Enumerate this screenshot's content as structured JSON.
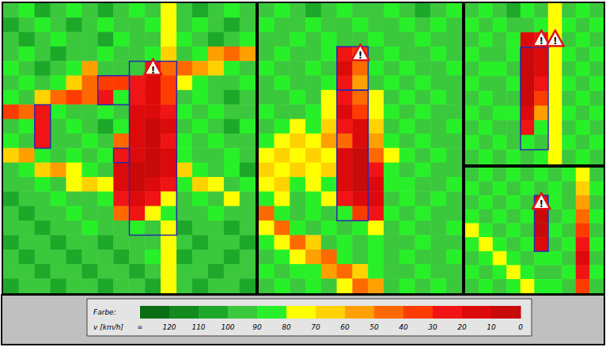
{
  "chart_data": [
    {
      "type": "heatmap",
      "cells": [
        [
          95,
          85,
          105,
          95,
          85,
          95,
          105,
          95,
          85,
          95,
          75,
          95,
          105,
          95,
          85,
          95
        ],
        [
          105,
          95,
          85,
          95,
          105,
          95,
          85,
          95,
          95,
          85,
          75,
          95,
          85,
          95,
          105,
          95
        ],
        [
          95,
          105,
          95,
          85,
          95,
          95,
          105,
          85,
          95,
          95,
          75,
          85,
          95,
          105,
          95,
          85
        ],
        [
          95,
          85,
          95,
          105,
          95,
          95,
          85,
          95,
          95,
          85,
          65,
          95,
          85,
          55,
          45,
          55
        ],
        [
          85,
          95,
          105,
          95,
          85,
          55,
          95,
          95,
          95,
          25,
          45,
          45,
          55,
          65,
          85,
          95
        ],
        [
          95,
          85,
          95,
          85,
          65,
          45,
          35,
          35,
          25,
          15,
          35,
          75,
          85,
          95,
          95,
          85
        ],
        [
          85,
          95,
          65,
          45,
          35,
          45,
          25,
          85,
          25,
          15,
          35,
          95,
          85,
          95,
          105,
          95
        ],
        [
          35,
          45,
          25,
          85,
          95,
          95,
          85,
          95,
          15,
          15,
          25,
          85,
          95,
          85,
          95,
          95
        ],
        [
          95,
          85,
          25,
          95,
          85,
          95,
          105,
          85,
          15,
          5,
          15,
          95,
          85,
          95,
          105,
          85
        ],
        [
          85,
          95,
          25,
          95,
          95,
          85,
          95,
          45,
          15,
          5,
          25,
          85,
          95,
          85,
          95,
          95
        ],
        [
          65,
          55,
          85,
          95,
          85,
          95,
          85,
          25,
          15,
          5,
          15,
          85,
          95,
          95,
          85,
          95
        ],
        [
          95,
          85,
          65,
          55,
          75,
          85,
          95,
          15,
          5,
          5,
          15,
          65,
          85,
          95,
          85,
          105
        ],
        [
          95,
          95,
          85,
          95,
          75,
          65,
          75,
          15,
          5,
          15,
          25,
          85,
          65,
          75,
          95,
          85
        ],
        [
          105,
          95,
          95,
          85,
          95,
          95,
          85,
          25,
          15,
          25,
          75,
          95,
          85,
          95,
          75,
          95
        ],
        [
          95,
          105,
          95,
          95,
          85,
          95,
          95,
          45,
          25,
          75,
          85,
          95,
          95,
          85,
          95,
          95
        ],
        [
          95,
          95,
          105,
          95,
          95,
          85,
          95,
          95,
          85,
          95,
          75,
          105,
          95,
          95,
          105,
          95
        ],
        [
          105,
          95,
          95,
          105,
          95,
          95,
          105,
          95,
          95,
          95,
          75,
          95,
          105,
          95,
          95,
          105
        ],
        [
          95,
          105,
          95,
          95,
          105,
          95,
          95,
          105,
          95,
          85,
          75,
          105,
          95,
          95,
          105,
          95
        ],
        [
          95,
          95,
          105,
          95,
          95,
          105,
          95,
          95,
          105,
          95,
          75,
          95,
          95,
          105,
          95,
          95
        ],
        [
          105,
          95,
          95,
          105,
          95,
          95,
          105,
          95,
          95,
          105,
          75,
          95,
          105,
          95,
          95,
          105
        ]
      ],
      "boxes": [
        [
          8,
          4,
          10,
          15
        ],
        [
          2,
          7,
          2,
          9
        ],
        [
          6,
          5,
          7,
          6
        ],
        [
          7,
          10,
          7,
          10
        ]
      ],
      "warnings": [
        [
          9,
          4
        ]
      ]
    },
    {
      "type": "heatmap",
      "cells": [
        [
          95,
          85,
          95,
          105,
          95,
          85,
          95,
          95,
          85,
          95,
          105,
          95,
          85
        ],
        [
          85,
          95,
          95,
          85,
          95,
          95,
          85,
          95,
          95,
          85,
          95,
          85,
          95
        ],
        [
          95,
          95,
          85,
          95,
          85,
          95,
          95,
          85,
          95,
          95,
          85,
          95,
          95
        ],
        [
          95,
          85,
          95,
          95,
          85,
          25,
          35,
          95,
          85,
          95,
          95,
          85,
          95
        ],
        [
          85,
          95,
          95,
          85,
          95,
          15,
          45,
          85,
          95,
          85,
          95,
          95,
          85
        ],
        [
          95,
          85,
          95,
          95,
          85,
          25,
          55,
          95,
          85,
          95,
          85,
          95,
          95
        ],
        [
          95,
          95,
          85,
          95,
          75,
          25,
          45,
          75,
          95,
          85,
          95,
          85,
          95
        ],
        [
          85,
          95,
          95,
          85,
          75,
          15,
          35,
          75,
          85,
          95,
          85,
          95,
          95
        ],
        [
          95,
          85,
          75,
          85,
          65,
          25,
          15,
          65,
          95,
          85,
          95,
          95,
          85
        ],
        [
          85,
          75,
          65,
          75,
          55,
          45,
          15,
          55,
          85,
          95,
          85,
          95,
          95
        ],
        [
          75,
          65,
          75,
          65,
          75,
          15,
          5,
          45,
          75,
          85,
          95,
          85,
          95
        ],
        [
          65,
          75,
          65,
          75,
          65,
          15,
          5,
          25,
          85,
          95,
          85,
          95,
          95
        ],
        [
          75,
          65,
          85,
          75,
          85,
          15,
          5,
          15,
          85,
          85,
          95,
          95,
          85
        ],
        [
          85,
          75,
          95,
          85,
          75,
          25,
          15,
          15,
          95,
          85,
          95,
          85,
          95
        ],
        [
          45,
          85,
          95,
          85,
          95,
          85,
          35,
          25,
          85,
          95,
          85,
          95,
          95
        ],
        [
          75,
          45,
          85,
          95,
          85,
          95,
          85,
          75,
          95,
          85,
          95,
          95,
          85
        ],
        [
          85,
          75,
          45,
          65,
          95,
          85,
          95,
          85,
          95,
          95,
          85,
          95,
          95
        ],
        [
          95,
          85,
          75,
          55,
          45,
          85,
          95,
          85,
          95,
          85,
          95,
          95,
          85
        ],
        [
          85,
          95,
          85,
          85,
          55,
          45,
          65,
          85,
          95,
          95,
          85,
          95,
          95
        ],
        [
          95,
          85,
          95,
          85,
          95,
          75,
          45,
          55,
          95,
          85,
          95,
          85,
          95
        ]
      ],
      "boxes": [
        [
          5,
          3,
          6,
          5
        ],
        [
          5,
          6,
          6,
          14
        ]
      ],
      "warnings": [
        [
          6,
          3
        ]
      ]
    },
    {
      "type": "heatmap",
      "cells": [
        [
          95,
          85,
          95,
          105,
          85,
          95,
          75,
          95,
          85,
          95
        ],
        [
          85,
          95,
          85,
          95,
          95,
          85,
          75,
          85,
          95,
          85
        ],
        [
          95,
          85,
          95,
          85,
          15,
          25,
          75,
          95,
          85,
          95
        ],
        [
          85,
          95,
          95,
          85,
          5,
          15,
          75,
          85,
          95,
          85
        ],
        [
          95,
          85,
          85,
          95,
          5,
          15,
          75,
          95,
          85,
          95
        ],
        [
          85,
          95,
          95,
          85,
          5,
          25,
          75,
          85,
          95,
          85
        ],
        [
          95,
          85,
          95,
          95,
          5,
          35,
          75,
          95,
          85,
          95
        ],
        [
          85,
          95,
          85,
          85,
          15,
          55,
          75,
          85,
          95,
          85
        ],
        [
          95,
          85,
          95,
          95,
          25,
          85,
          75,
          95,
          85,
          95
        ],
        [
          85,
          95,
          85,
          95,
          85,
          95,
          75,
          85,
          95,
          85
        ],
        [
          95,
          85,
          95,
          85,
          95,
          85,
          75,
          95,
          85,
          95
        ]
      ],
      "boxes": [
        [
          4,
          3,
          5,
          9
        ]
      ],
      "warnings": [
        [
          5,
          2
        ],
        [
          6,
          2
        ]
      ]
    },
    {
      "type": "heatmap",
      "cells": [
        [
          95,
          85,
          95,
          85,
          95,
          85,
          95,
          85,
          75,
          95
        ],
        [
          85,
          95,
          85,
          95,
          85,
          95,
          85,
          95,
          65,
          85
        ],
        [
          95,
          85,
          95,
          85,
          95,
          15,
          85,
          95,
          55,
          95
        ],
        [
          85,
          95,
          85,
          95,
          85,
          5,
          95,
          85,
          45,
          85
        ],
        [
          75,
          85,
          95,
          85,
          95,
          5,
          85,
          95,
          35,
          95
        ],
        [
          85,
          75,
          85,
          95,
          85,
          15,
          95,
          85,
          25,
          85
        ],
        [
          95,
          85,
          75,
          85,
          95,
          85,
          85,
          95,
          15,
          95
        ],
        [
          85,
          95,
          85,
          75,
          85,
          95,
          95,
          85,
          25,
          85
        ],
        [
          95,
          85,
          95,
          85,
          75,
          85,
          85,
          95,
          35,
          95
        ]
      ],
      "boxes": [
        [
          5,
          2,
          5,
          5
        ]
      ],
      "warnings": [
        [
          5,
          2
        ]
      ]
    }
  ],
  "annotation": "!",
  "color_bar": {
    "label": "Farbe:",
    "axis_label": "v [km/h]",
    "colors": [
      "#0a6e14",
      "#128a1e",
      "#1ea82a",
      "#3cc83c",
      "#28f028",
      "#ffff00",
      "#ffd200",
      "#ffa000",
      "#ff6a00",
      "#ff3c00",
      "#f01414",
      "#dc0a0a",
      "#c80a0a"
    ],
    "ticks": [
      {
        "value": null,
        "label": "∞"
      },
      120,
      110,
      100,
      90,
      80,
      70,
      60,
      50,
      40,
      30,
      20,
      10,
      0
    ]
  }
}
